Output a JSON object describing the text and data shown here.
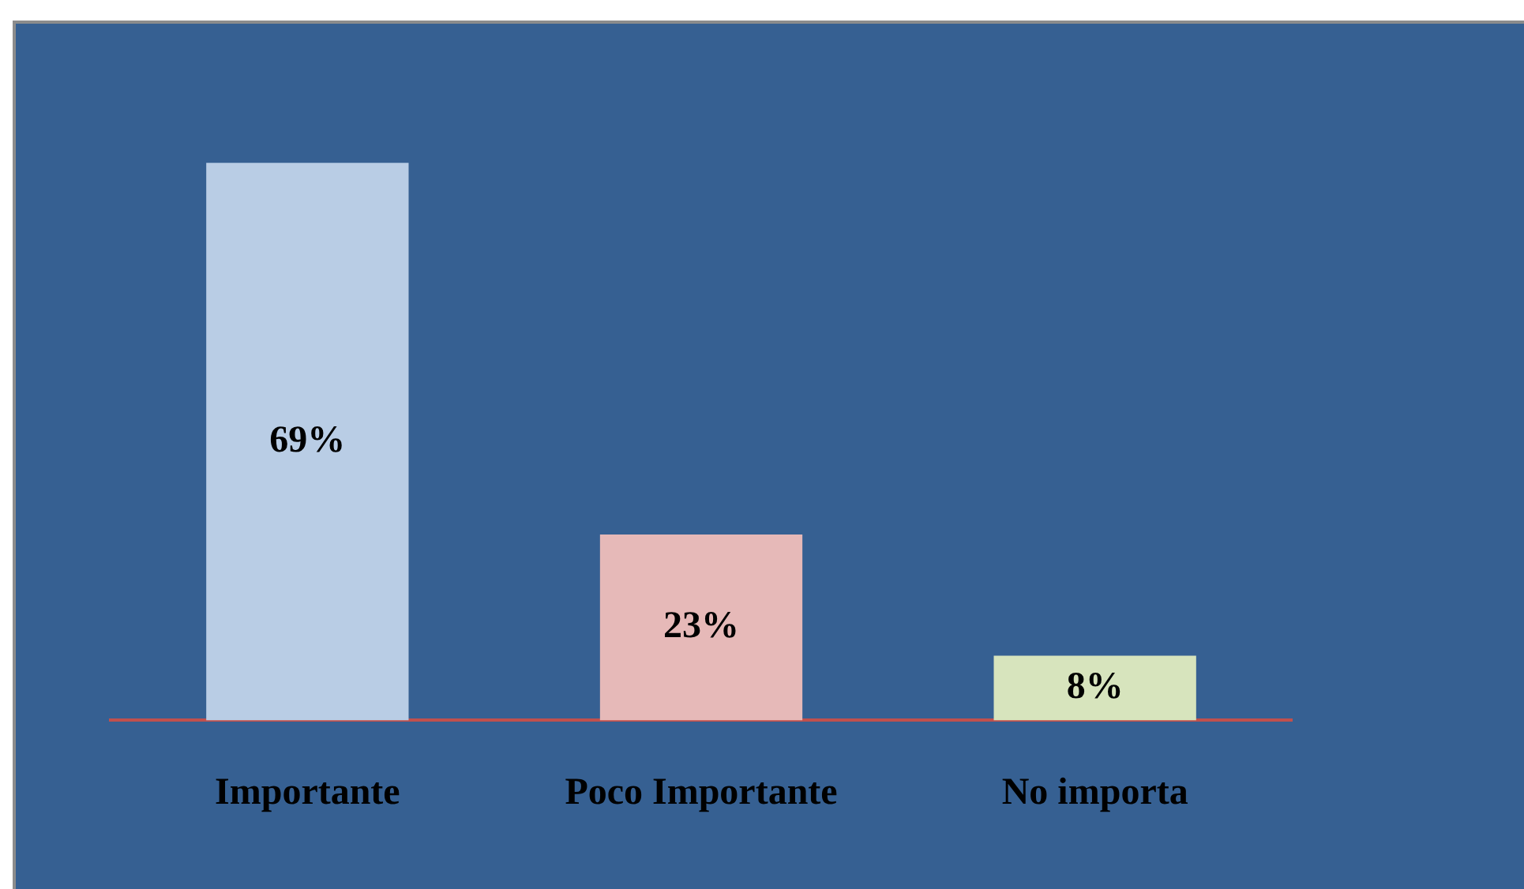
{
  "chart_data": {
    "type": "bar",
    "categories": [
      "Importante",
      "Poco Importante",
      "No importa"
    ],
    "values": [
      69,
      23,
      8
    ],
    "colors": [
      "#b9cde5",
      "#e6b9b8",
      "#d7e4bd"
    ],
    "value_labels": [
      "69%",
      "23%",
      "8%"
    ],
    "grid": false,
    "legend": false
  }
}
